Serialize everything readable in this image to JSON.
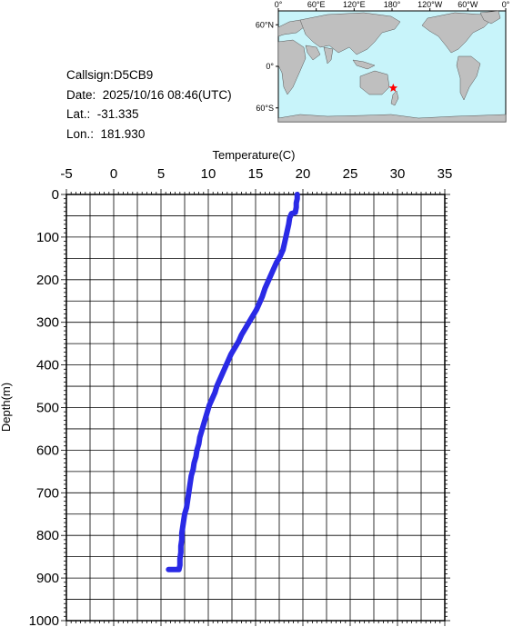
{
  "info": {
    "callsign": "Callsign:D5CB9",
    "date": "Date:  2025/10/16 08:46(UTC)",
    "lat": "Lat.:  -31.335",
    "lon": "Lon.:  181.930"
  },
  "map": {
    "top_ticks": [
      "0°",
      "60°E",
      "120°E",
      "180°",
      "120°W",
      "60°W",
      "0°"
    ],
    "left_ticks": [
      "60°N",
      "0°",
      "60°S"
    ],
    "marker": {
      "lon": 181.93,
      "lat": -31.335
    },
    "colors": {
      "ocean": "#c8f4fa",
      "land": "#bfbfbf",
      "marker": "#ff0000"
    }
  },
  "chart_data": {
    "type": "line",
    "title": "",
    "xlabel": "Temperature(C)",
    "ylabel": "Depth(m)",
    "xlim": [
      -5,
      35
    ],
    "ylim": [
      1000,
      0
    ],
    "x_ticks": [
      "-5",
      "0",
      "5",
      "10",
      "15",
      "20",
      "25",
      "30",
      "35"
    ],
    "y_ticks": [
      "0",
      "100",
      "200",
      "300",
      "400",
      "500",
      "600",
      "700",
      "800",
      "900",
      "1000"
    ],
    "grid": true,
    "series_color": "#2a2ae6",
    "series": [
      {
        "x": [
          19.4,
          19.4,
          19.3,
          19.3,
          19.2,
          18.8,
          18.6,
          18.5,
          18.3,
          18.1,
          17.9,
          17.6,
          17.2,
          16.9,
          16.6,
          16.3,
          16.0,
          15.7,
          15.4,
          15.1,
          14.7,
          14.3,
          13.9,
          13.5,
          13.2,
          12.8,
          12.4,
          12.1,
          11.8,
          11.5,
          11.2,
          10.9,
          10.7,
          10.4,
          10.1,
          9.9,
          9.7,
          9.5,
          9.3,
          9.1,
          9.0,
          8.8,
          8.7,
          8.5,
          8.4,
          8.2,
          8.1,
          8.0,
          7.9,
          7.8,
          7.7,
          7.5,
          7.4,
          7.3,
          7.2,
          7.2,
          7.1,
          7.1,
          7.0,
          7.0,
          6.9,
          6.8,
          6.8,
          6.7,
          6.6,
          6.6,
          6.5,
          6.5,
          6.4,
          6.4,
          6.3,
          6.3,
          6.2,
          6.2,
          6.1,
          6.1,
          6.0,
          6.0,
          5.9,
          5.9,
          5.8,
          5.8
        ],
        "y": [
          0,
          10,
          20,
          30,
          42,
          45,
          55,
          70,
          90,
          110,
          130,
          145,
          160,
          175,
          190,
          205,
          220,
          240,
          255,
          270,
          285,
          300,
          315,
          330,
          345,
          360,
          375,
          390,
          405,
          420,
          435,
          450,
          465,
          480,
          495,
          510,
          525,
          540,
          555,
          570,
          585,
          600,
          615,
          630,
          645,
          660,
          675,
          690,
          705,
          720,
          735,
          750,
          765,
          780,
          795,
          810,
          825,
          840,
          855,
          870,
          880,
          885,
          890,
          895,
          900,
          905,
          910,
          915,
          920,
          925,
          930,
          935,
          940,
          945,
          950,
          955,
          960,
          965,
          970,
          975,
          880,
          880
        ]
      }
    ]
  }
}
